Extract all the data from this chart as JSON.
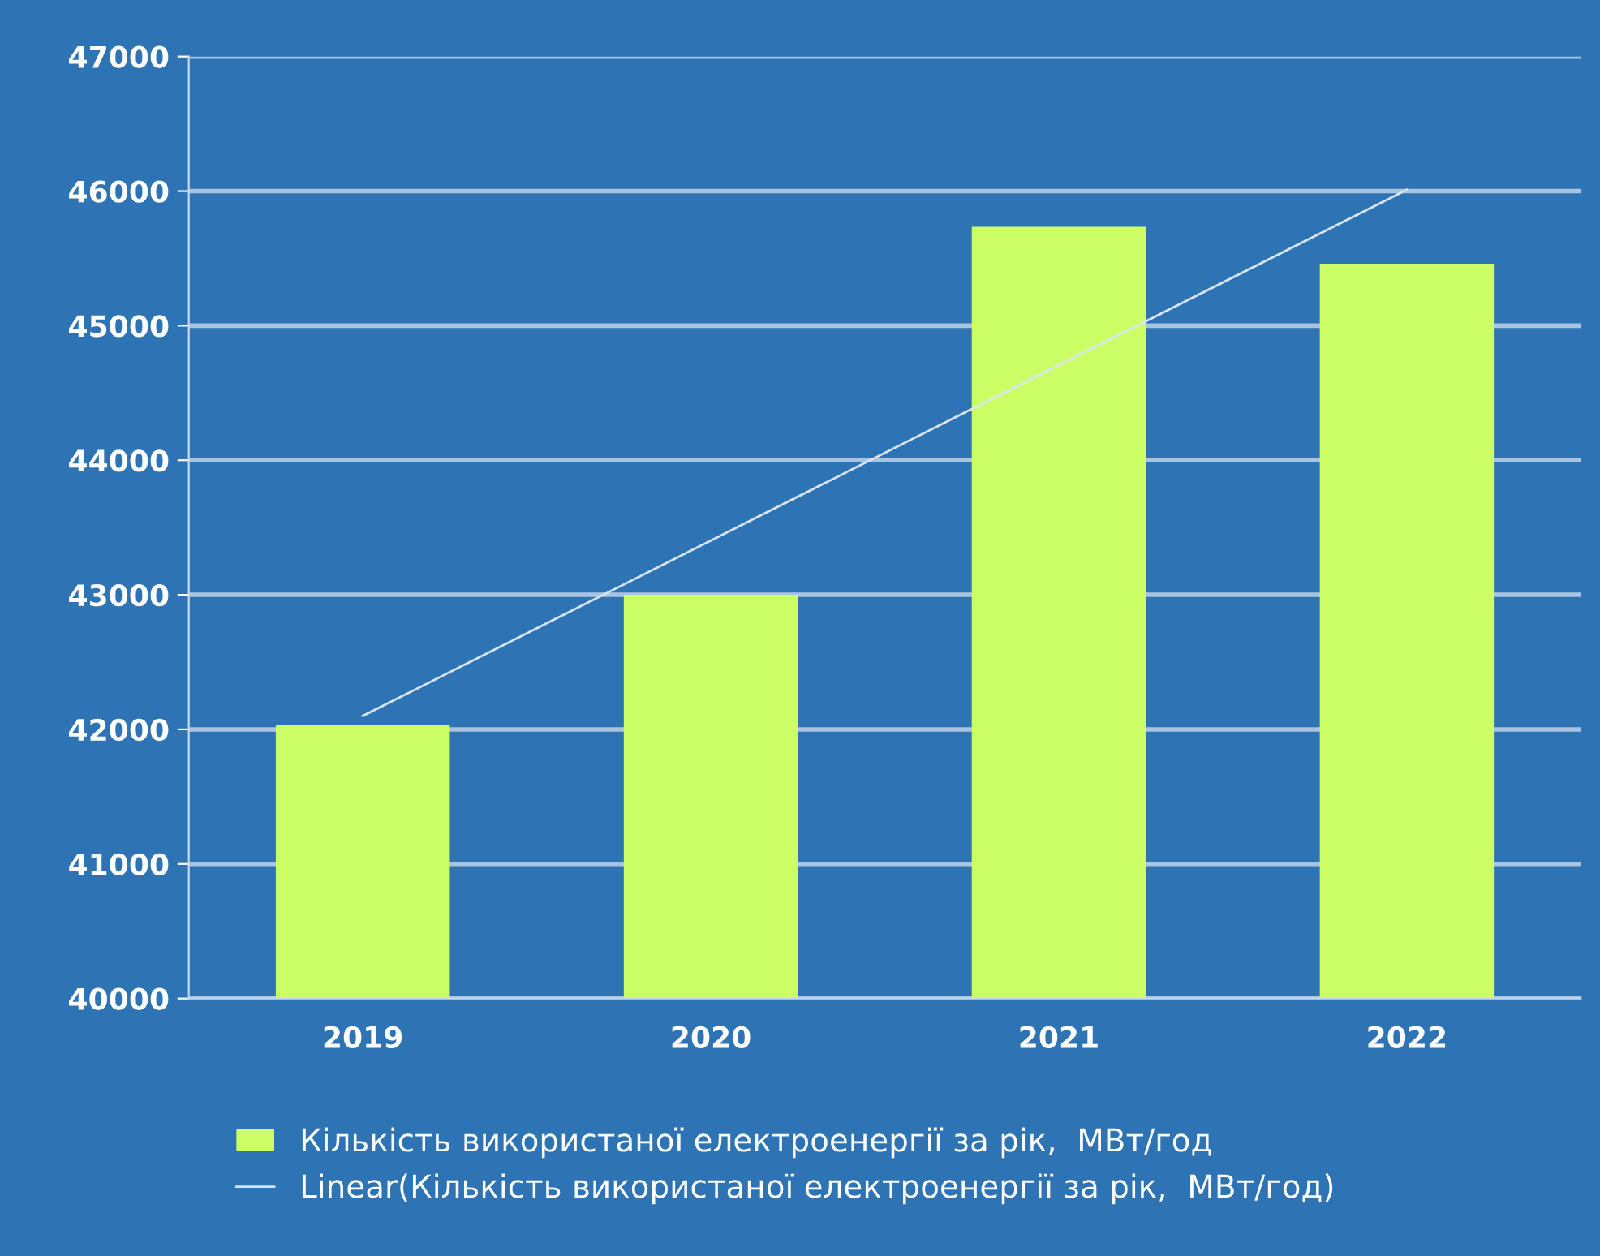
{
  "chart_data": {
    "type": "bar",
    "categories": [
      "2019",
      "2020",
      "2021",
      "2022"
    ],
    "series": [
      {
        "name": "Кількість використаної електроенергії за рік,  МВт/год",
        "color": "#ccff66",
        "values": [
          42030,
          43000,
          45735,
          45460
        ]
      },
      {
        "name": "Linear(Кількість використаної електроенергії за рік,  МВт/год)",
        "type": "line",
        "color": "#d9e6f2",
        "values": [
          42100,
          43403,
          44707,
          46010
        ]
      }
    ],
    "ylim": [
      40000,
      47000
    ],
    "yticks": [
      40000,
      41000,
      42000,
      43000,
      44000,
      45000,
      46000,
      47000
    ],
    "grid": "y",
    "legend": "bottom"
  }
}
